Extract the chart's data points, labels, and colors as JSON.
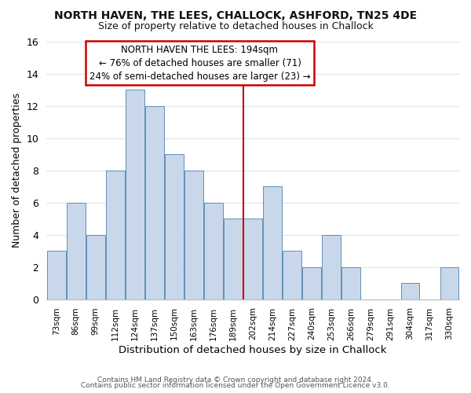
{
  "title": "NORTH HAVEN, THE LEES, CHALLOCK, ASHFORD, TN25 4DE",
  "subtitle": "Size of property relative to detached houses in Challock",
  "xlabel": "Distribution of detached houses by size in Challock",
  "ylabel": "Number of detached properties",
  "categories": [
    "73sqm",
    "86sqm",
    "99sqm",
    "112sqm",
    "124sqm",
    "137sqm",
    "150sqm",
    "163sqm",
    "176sqm",
    "189sqm",
    "202sqm",
    "214sqm",
    "227sqm",
    "240sqm",
    "253sqm",
    "266sqm",
    "279sqm",
    "291sqm",
    "304sqm",
    "317sqm",
    "330sqm"
  ],
  "values": [
    3,
    6,
    4,
    8,
    13,
    12,
    9,
    8,
    6,
    5,
    5,
    7,
    3,
    2,
    4,
    2,
    0,
    0,
    1,
    0,
    2
  ],
  "bar_color": "#c8d8ea",
  "bar_edge_color": "#6090b8",
  "reference_line_color": "#cc0000",
  "ylim": [
    0,
    16
  ],
  "yticks": [
    0,
    2,
    4,
    6,
    8,
    10,
    12,
    14,
    16
  ],
  "annotation_title": "NORTH HAVEN THE LEES: 194sqm",
  "annotation_line1": "← 76% of detached houses are smaller (71)",
  "annotation_line2": "24% of semi-detached houses are larger (23) →",
  "annotation_box_color": "#ffffff",
  "annotation_box_edge": "#cc0000",
  "footer1": "Contains HM Land Registry data © Crown copyright and database right 2024.",
  "footer2": "Contains public sector information licensed under the Open Government Licence v3.0.",
  "background_color": "#ffffff",
  "grid_color": "#e0e8f0"
}
